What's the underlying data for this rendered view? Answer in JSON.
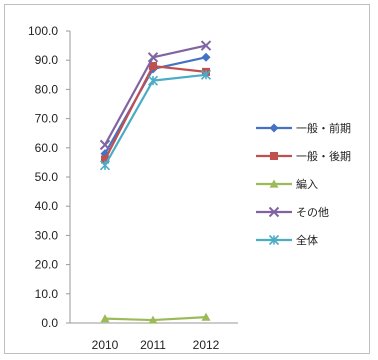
{
  "chart_data": {
    "type": "line",
    "title": "",
    "xlabel": "",
    "ylabel": "",
    "categories": [
      "2010",
      "2011",
      "2012"
    ],
    "ylim": [
      0,
      100
    ],
    "yticks": [
      "0.0",
      "10.0",
      "20.0",
      "30.0",
      "40.0",
      "50.0",
      "60.0",
      "70.0",
      "80.0",
      "90.0",
      "100.0"
    ],
    "grid": false,
    "legend": "right",
    "series": [
      {
        "name": "一般・前期",
        "values": [
          58,
          87,
          91
        ],
        "color": "#4472c4",
        "marker": "diamond"
      },
      {
        "name": "一般・後期",
        "values": [
          56,
          88,
          86
        ],
        "color": "#c0504d",
        "marker": "square"
      },
      {
        "name": "編入",
        "values": [
          1.5,
          1.0,
          2.0
        ],
        "color": "#9bbb59",
        "marker": "triangle"
      },
      {
        "name": "その他",
        "values": [
          61,
          91,
          95
        ],
        "color": "#8064a2",
        "marker": "x"
      },
      {
        "name": "全体",
        "values": [
          54,
          83,
          85
        ],
        "color": "#4bacc6",
        "marker": "star"
      }
    ]
  }
}
